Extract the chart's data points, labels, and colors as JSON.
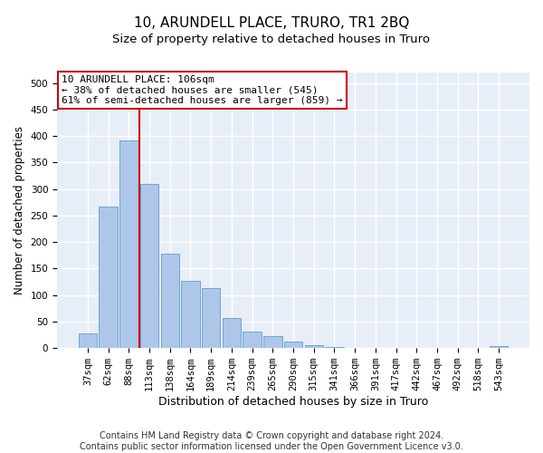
{
  "title": "10, ARUNDELL PLACE, TRURO, TR1 2BQ",
  "subtitle": "Size of property relative to detached houses in Truro",
  "xlabel": "Distribution of detached houses by size in Truro",
  "ylabel": "Number of detached properties",
  "categories": [
    "37sqm",
    "62sqm",
    "88sqm",
    "113sqm",
    "138sqm",
    "164sqm",
    "189sqm",
    "214sqm",
    "239sqm",
    "265sqm",
    "290sqm",
    "315sqm",
    "341sqm",
    "366sqm",
    "391sqm",
    "417sqm",
    "442sqm",
    "467sqm",
    "492sqm",
    "518sqm",
    "543sqm"
  ],
  "bar_values": [
    27,
    267,
    391,
    309,
    178,
    127,
    113,
    57,
    32,
    23,
    12,
    6,
    2,
    1,
    1,
    0,
    0,
    0,
    0,
    0,
    3
  ],
  "bar_color": "#aec6e8",
  "bar_edge_color": "#5a9fd4",
  "background_color": "#e8eef8",
  "grid_color": "#ffffff",
  "vline_x": 2.5,
  "vline_color": "#cc0000",
  "annotation_text": "10 ARUNDELL PLACE: 106sqm\n← 38% of detached houses are smaller (545)\n61% of semi-detached houses are larger (859) →",
  "annotation_fontsize": 8,
  "annotation_box_color": "#ffffff",
  "annotation_box_edge_color": "#cc0000",
  "ylim": [
    0,
    520
  ],
  "yticks": [
    0,
    50,
    100,
    150,
    200,
    250,
    300,
    350,
    400,
    450,
    500
  ],
  "footnote": "Contains HM Land Registry data © Crown copyright and database right 2024.\nContains public sector information licensed under the Open Government Licence v3.0.",
  "title_fontsize": 11,
  "subtitle_fontsize": 9.5,
  "xlabel_fontsize": 9,
  "ylabel_fontsize": 8.5,
  "footnote_fontsize": 7,
  "tick_fontsize": 7.5
}
